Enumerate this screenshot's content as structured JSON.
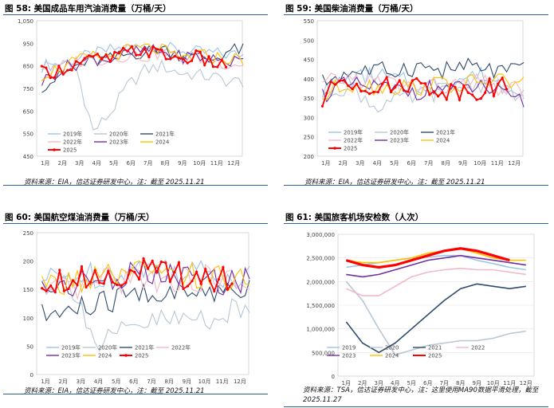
{
  "charts": {
    "c58": {
      "title": "图 58:  美国成品车用汽油消费量（万桶/天）",
      "source": "资料来源：EIA，信达证券研发中心，注：截至 2025.11.21"
    },
    "c59": {
      "title": "图 59:  美国柴油消费量（万桶/天）",
      "source": "资料来源：EIA，信达证券研发中心，注：截至 2025.11.21"
    },
    "c60": {
      "title": "图 60:  美国航空煤油消费量（万桶/天）",
      "source": "资料来源：EIA，信达证券研发中心，注：截至 2025.11.21"
    },
    "c61": {
      "title": "图 61:  美国旅客机场安检数（人次）",
      "source": "资料来源：TSA，信达证券研发中心，注：这里使用MA90数据平滑处理，截至 2025.11.27"
    }
  },
  "colors": {
    "2019": "#9dc3e6",
    "2020": "#b7c7d6",
    "2021": "#2f4b6e",
    "2022": "#f4b8c6",
    "2023": "#7030a0",
    "2024": "#ffc000",
    "2025": "#ff0000"
  },
  "chart_data": [
    {
      "type": "line",
      "title": "图 58:  美国成品车用汽油消费量（万桶/天）",
      "ylim": [
        450,
        1050
      ],
      "yticks": [
        "450",
        "550",
        "650",
        "750",
        "850",
        "950",
        "1,050"
      ],
      "xticks": [
        "1月",
        "2月",
        "3月",
        "4月",
        "5月",
        "6月",
        "7月",
        "8月",
        "9月",
        "10月",
        "11月",
        "12月"
      ],
      "legend": {
        "ncol": 3,
        "placement": "bottom-left"
      },
      "series": [
        {
          "name": "2019年",
          "values": [
            850,
            860,
            880,
            900,
            920,
            930,
            940,
            930,
            920,
            910,
            905,
            900
          ]
        },
        {
          "name": "2020年",
          "values": [
            850,
            860,
            840,
            560,
            640,
            760,
            830,
            850,
            820,
            810,
            800,
            780
          ]
        },
        {
          "name": "2021年",
          "values": [
            760,
            800,
            850,
            870,
            880,
            900,
            910,
            930,
            900,
            890,
            880,
            920
          ]
        },
        {
          "name": "2022年",
          "values": [
            800,
            840,
            870,
            880,
            880,
            900,
            890,
            910,
            880,
            890,
            870,
            860
          ]
        },
        {
          "name": "2023年",
          "values": [
            780,
            830,
            860,
            880,
            880,
            900,
            920,
            910,
            890,
            890,
            880,
            870
          ]
        },
        {
          "name": "2024",
          "values": [
            810,
            840,
            870,
            890,
            890,
            920,
            930,
            920,
            880,
            900,
            890,
            880
          ]
        },
        {
          "name": "2025",
          "values": [
            820,
            830,
            860,
            880,
            880,
            910,
            920,
            900,
            880,
            890,
            860
          ]
        }
      ]
    },
    {
      "type": "line",
      "title": "图 59:  美国柴油消费量（万桶/天）",
      "ylim": [
        200,
        550
      ],
      "yticks": [
        "200",
        "250",
        "300",
        "350",
        "400",
        "450",
        "500",
        "550"
      ],
      "xticks": [
        "1月",
        "2月",
        "3月",
        "4月",
        "5月",
        "6月",
        "7月",
        "8月",
        "9月",
        "10月",
        "11月",
        "12月"
      ],
      "legend": {
        "ncol": 3,
        "placement": "bottom-left"
      },
      "series": [
        {
          "name": "2019年",
          "values": [
            370,
            390,
            400,
            410,
            400,
            390,
            380,
            390,
            400,
            410,
            400,
            380
          ]
        },
        {
          "name": "2020年",
          "values": [
            360,
            380,
            370,
            330,
            340,
            350,
            360,
            370,
            380,
            390,
            380,
            360
          ]
        },
        {
          "name": "2021年",
          "values": [
            390,
            410,
            420,
            420,
            420,
            430,
            430,
            420,
            430,
            430,
            420,
            420
          ]
        },
        {
          "name": "2022年",
          "values": [
            380,
            400,
            400,
            390,
            390,
            380,
            380,
            380,
            380,
            390,
            380,
            370
          ]
        },
        {
          "name": "2023年",
          "values": [
            360,
            380,
            380,
            380,
            370,
            370,
            370,
            380,
            370,
            380,
            370,
            340
          ]
        },
        {
          "name": "2024",
          "values": [
            350,
            380,
            390,
            380,
            380,
            380,
            380,
            390,
            380,
            390,
            400,
            390
          ]
        },
        {
          "name": "2025",
          "values": [
            340,
            400,
            390,
            380,
            380,
            390,
            380,
            370,
            370,
            370,
            380
          ]
        }
      ]
    },
    {
      "type": "line",
      "title": "图 60:  美国航空煤油消费量（万桶/天）",
      "ylim": [
        0,
        250
      ],
      "yticks": [
        "0",
        "50",
        "100",
        "150",
        "200",
        "250"
      ],
      "xticks": [
        "1月",
        "2月",
        "3月",
        "4月",
        "5月",
        "6月",
        "7月",
        "8月",
        "9月",
        "10月",
        "11月",
        "12月"
      ],
      "legend": {
        "ncol": 4,
        "placement": "bottom-left"
      },
      "series": [
        {
          "name": "2019年",
          "values": [
            165,
            170,
            175,
            175,
            180,
            185,
            190,
            190,
            180,
            180,
            175,
            175
          ]
        },
        {
          "name": "2020年",
          "values": [
            160,
            165,
            150,
            50,
            60,
            80,
            90,
            95,
            95,
            100,
            105,
            110
          ]
        },
        {
          "name": "2021年",
          "values": [
            100,
            110,
            115,
            120,
            130,
            140,
            145,
            140,
            140,
            145,
            150,
            155
          ]
        },
        {
          "name": "2022年",
          "values": [
            140,
            145,
            150,
            160,
            165,
            170,
            170,
            170,
            165,
            170,
            165,
            165
          ]
        },
        {
          "name": "2023年",
          "values": [
            150,
            160,
            160,
            165,
            170,
            175,
            175,
            175,
            170,
            170,
            165,
            165
          ]
        },
        {
          "name": "2024",
          "values": [
            155,
            160,
            165,
            170,
            170,
            175,
            180,
            175,
            170,
            175,
            170,
            170
          ]
        },
        {
          "name": "2025",
          "values": [
            165,
            170,
            170,
            175,
            175,
            180,
            180,
            180,
            175,
            175,
            170
          ]
        }
      ]
    },
    {
      "type": "line",
      "title": "图 61:  美国旅客机场安检数（人次）",
      "ylim": [
        0,
        3000000
      ],
      "yticks": [
        "0",
        "500,000",
        "1,000,000",
        "1,500,000",
        "2,000,000",
        "2,500,000",
        "3,000,000"
      ],
      "xticks": [
        "1月",
        "2月",
        "3月",
        "4月",
        "5月",
        "6月",
        "7月",
        "8月",
        "9月",
        "10月",
        "11月",
        "12月"
      ],
      "legend": {
        "ncol": 4,
        "placement": "bottom-left"
      },
      "series": [
        {
          "name": "2019",
          "values": [
            2300000,
            2350000,
            2400000,
            2450000,
            2500000,
            2520000,
            2550000,
            2550000,
            2450000,
            2380000,
            2300000,
            2250000
          ]
        },
        {
          "name": "2020",
          "values": [
            2000000,
            1600000,
            1000000,
            450000,
            550000,
            650000,
            700000,
            750000,
            750000,
            800000,
            900000,
            950000
          ]
        },
        {
          "name": "2021",
          "values": [
            1150000,
            700000,
            500000,
            700000,
            1000000,
            1300000,
            1600000,
            1850000,
            1950000,
            1900000,
            1850000,
            1900000
          ]
        },
        {
          "name": "2022",
          "values": [
            1850000,
            1700000,
            1700000,
            1900000,
            2100000,
            2200000,
            2250000,
            2280000,
            2250000,
            2250000,
            2200000,
            2150000
          ]
        },
        {
          "name": "2023",
          "values": [
            2150000,
            2100000,
            2150000,
            2250000,
            2350000,
            2450000,
            2500000,
            2550000,
            2500000,
            2450000,
            2400000,
            2350000
          ]
        },
        {
          "name": "2024",
          "values": [
            2450000,
            2400000,
            2400000,
            2450000,
            2500000,
            2600000,
            2650000,
            2700000,
            2600000,
            2500000,
            2450000,
            2450000
          ]
        },
        {
          "name": "2025",
          "values": [
            2450000,
            2350000,
            2300000,
            2350000,
            2450000,
            2550000,
            2650000,
            2700000,
            2650000,
            2550000,
            2450000
          ]
        }
      ]
    }
  ]
}
